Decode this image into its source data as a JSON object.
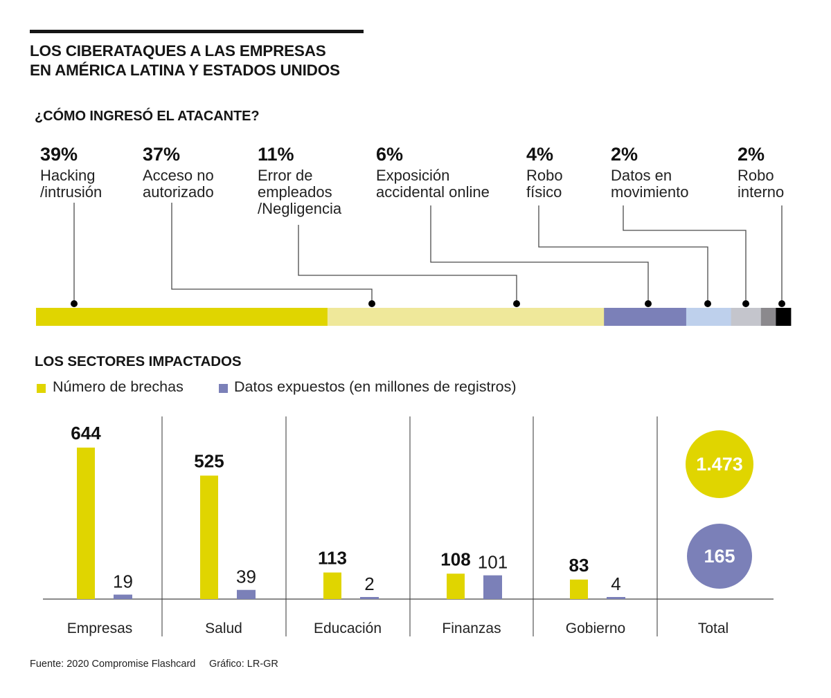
{
  "header": {
    "title_lines": [
      "LOS CIBERATAQUES A LAS EMPRESAS",
      "EN AMÉRICA LATINA Y ESTADOS UNIDOS"
    ]
  },
  "attack_section": {
    "title": "¿CÓMO INGRESÓ EL ATACANTE?"
  },
  "sectors_section": {
    "title": "LOS SECTORES IMPACTADOS",
    "legend": [
      {
        "label": "Número de brechas",
        "color": "#e0d500"
      },
      {
        "label": "Datos expuestos (en millones de registros)",
        "color": "#7b80b8"
      }
    ]
  },
  "footer": {
    "source": "Fuente: 2020 Compromise Flashcard",
    "credit": "Gráfico: LR-GR"
  },
  "chart_data": [
    {
      "type": "bar",
      "subtype": "stacked-100-percent",
      "title": "¿CÓMO INGRESÓ EL ATACANTE?",
      "unit": "%",
      "categories": [
        "Hacking /intrusión",
        "Acceso no autorizado",
        "Error de empleados /Negligencia",
        "Exposición accidental online",
        "Robo físico",
        "Datos en movimiento",
        "Robo interno"
      ],
      "category_lines": [
        [
          "Hacking",
          "/intrusión"
        ],
        [
          "Acceso no",
          "autorizado"
        ],
        [
          "Error de",
          "empleados",
          "/Negligencia"
        ],
        [
          "Exposición",
          "accidental online"
        ],
        [
          "Robo",
          "físico"
        ],
        [
          "Datos en",
          "movimiento"
        ],
        [
          "Robo",
          "interno"
        ]
      ],
      "values": [
        39,
        37,
        11,
        6,
        4,
        2,
        2
      ],
      "value_labels": [
        "39%",
        "37%",
        "11%",
        "6%",
        "4%",
        "2%",
        "2%"
      ],
      "colors": [
        "#e0d500",
        "#efe89a",
        "#7b80b8",
        "#bed0ec",
        "#c4c5cc",
        "#8b898d",
        "#000000"
      ]
    },
    {
      "type": "bar",
      "title": "LOS SECTORES IMPACTADOS",
      "xlabel": "",
      "ylabel": "",
      "grid": false,
      "legend_position": "top-left",
      "categories": [
        "Empresas",
        "Salud",
        "Educación",
        "Finanzas",
        "Gobierno"
      ],
      "series": [
        {
          "name": "Número de brechas",
          "color": "#e0d500",
          "values": [
            644,
            525,
            113,
            108,
            83
          ]
        },
        {
          "name": "Datos expuestos (en millones de registros)",
          "color": "#7b80b8",
          "values": [
            19,
            39,
            2,
            101,
            4
          ]
        }
      ],
      "totals": {
        "label": "Total",
        "values": [
          1473,
          165
        ],
        "labels": [
          "1.473",
          "165"
        ],
        "colors": [
          "#e0d500",
          "#7b80b8"
        ]
      }
    }
  ]
}
